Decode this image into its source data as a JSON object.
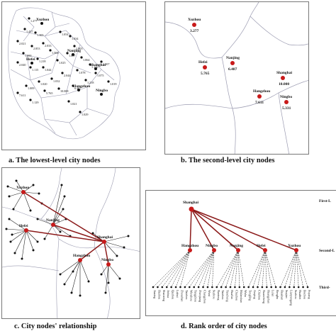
{
  "panels": {
    "a": {
      "caption": "a. The lowest-level city nodes",
      "labels": [
        "Xuzhou",
        "Nanjing",
        "Hefei",
        "Hangzhou",
        "Shanghai",
        "Ningbo"
      ],
      "values": [
        "1.277",
        "1.437",
        "1.305",
        "2.021",
        "2.853",
        "2.033",
        "1.000",
        "1.218",
        "1.504",
        "2.040",
        "1.115",
        "1.044",
        "1.025",
        "1.007",
        "1.003",
        "1.034",
        "1.054",
        "1.064",
        "1.136",
        "1.078",
        "2.044",
        "1.032",
        "1.020",
        "1.009",
        "7.611",
        "1.129",
        "5.765",
        "10.000",
        "6.487",
        "1.218",
        "1.075",
        "1.107",
        "1.019",
        "1.021",
        "1.029"
      ]
    },
    "b": {
      "caption": "b. The second-level city nodes",
      "nodes": [
        {
          "name": "Xuzhou",
          "value": "3.277"
        },
        {
          "name": "Hefei",
          "value": "5.765"
        },
        {
          "name": "Nanjing",
          "value": "6.487"
        },
        {
          "name": "Shanghai",
          "value": "10.000"
        },
        {
          "name": "Hangzhou",
          "value": "7.611"
        },
        {
          "name": "Ningbo",
          "value": "5.331"
        }
      ]
    },
    "c": {
      "caption": "c. City nodes' relationship",
      "labels": [
        "Xuzhou",
        "Hefei",
        "Nanjing",
        "Shanghai",
        "Hangzhou",
        "Ningbo"
      ]
    },
    "d": {
      "caption": "d. Rank order of city nodes",
      "root": "Shanghai",
      "second": [
        "Hangzhou",
        "Ningbo",
        "Nanjing",
        "Hefei",
        "Xuzhou"
      ],
      "levels": [
        "First-L",
        "Second-L",
        "Third-"
      ],
      "third": [
        "Jiaxing",
        "Huzhou",
        "Shaoxing",
        "Jinhua",
        "Quzhou",
        "Lishui",
        "Zhoushan",
        "Taizhou",
        "Wenzhou",
        "Yangzhou",
        "Zhenjiang",
        "Changzhou",
        "Wuxi",
        "Suzhou",
        "Nantong",
        "Taizhou",
        "Yancheng",
        "Huai'an",
        "Chuzhou",
        "Ma'anshan",
        "Wuhu",
        "Tongling",
        "Anqing",
        "Chizhou",
        "Xuancheng",
        "Huangshan",
        "Lu'an",
        "Bengbu",
        "Huainan",
        "Suqian",
        "Lianyungang",
        "Suzhou",
        "Huaibei",
        "Bozhou",
        "Fuyang"
      ]
    }
  },
  "colors": {
    "node": "#c81a1a",
    "link": "#8b1a1a",
    "line": "#222222",
    "boundary": "#9a9ab0"
  }
}
